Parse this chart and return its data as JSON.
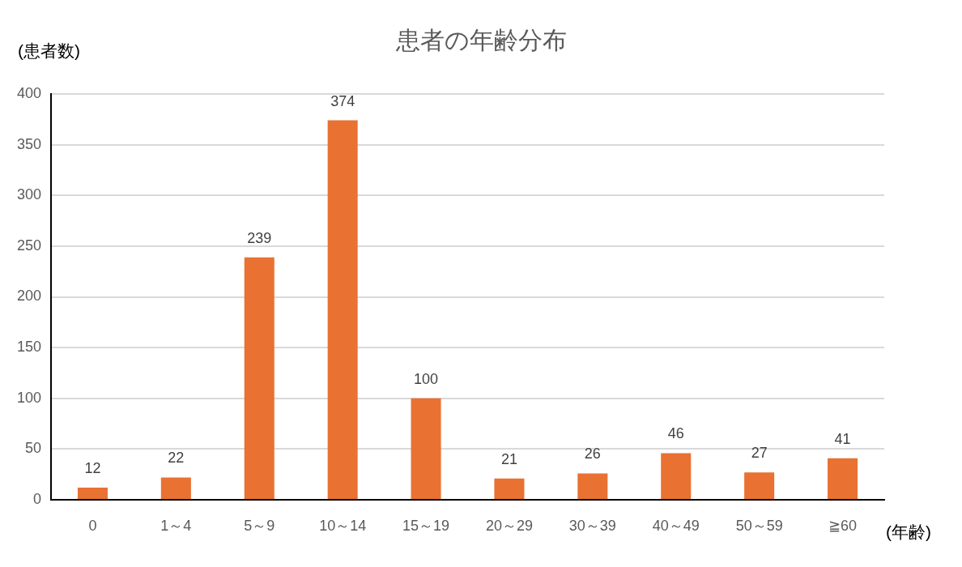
{
  "chart_data": {
    "type": "bar",
    "title": "患者の年齢分布",
    "ylabel": "(患者数)",
    "xlabel": "(年齢)",
    "categories": [
      "0",
      "1～4",
      "5～9",
      "10～14",
      "15～19",
      "20～29",
      "30～39",
      "40～49",
      "50～59",
      "≧60"
    ],
    "values": [
      12,
      22,
      239,
      374,
      100,
      21,
      26,
      46,
      27,
      41
    ],
    "color": "#e97132",
    "ylim": [
      0,
      400
    ],
    "yticks": [
      0,
      50,
      100,
      150,
      200,
      250,
      300,
      350,
      400
    ],
    "grid": "y",
    "data_labels": true
  }
}
